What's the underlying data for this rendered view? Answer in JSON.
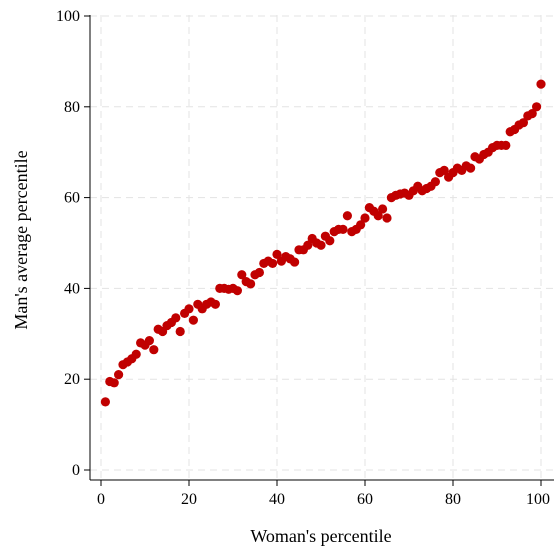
{
  "chart_data": {
    "type": "scatter",
    "title": "",
    "xlabel": "Woman's percentile",
    "ylabel": "Man's average percentile",
    "xlim": [
      0,
      100
    ],
    "ylim": [
      0,
      100
    ],
    "x_ticks": [
      "0",
      "20",
      "40",
      "60",
      "80",
      "100"
    ],
    "y_ticks": [
      "0",
      "20",
      "40",
      "60",
      "80",
      "100"
    ],
    "grid": true,
    "legend": "none",
    "point_color": "#c00000",
    "series": [
      {
        "x": [
          1,
          2,
          3,
          4,
          5,
          6,
          7,
          8,
          9,
          10,
          11,
          12,
          13,
          14,
          15,
          16,
          17,
          18,
          19,
          20,
          21,
          22,
          23,
          24,
          25,
          26,
          27,
          28,
          29,
          30,
          31,
          32,
          33,
          34,
          35,
          36,
          37,
          38,
          39,
          40,
          41,
          42,
          43,
          44,
          45,
          46,
          47,
          48,
          49,
          50,
          51,
          52,
          53,
          54,
          55,
          56,
          57,
          58,
          59,
          60,
          61,
          62,
          63,
          64,
          65,
          66,
          67,
          68,
          69,
          70,
          71,
          72,
          73,
          74,
          75,
          76,
          77,
          78,
          79,
          80,
          81,
          82,
          83,
          84,
          85,
          86,
          87,
          88,
          89,
          90,
          91,
          92,
          93,
          94,
          95,
          96,
          97,
          98,
          99,
          100
        ],
        "y": [
          15,
          19.5,
          19.2,
          21,
          23.2,
          23.8,
          24.5,
          25.5,
          28,
          27.5,
          28.5,
          26.5,
          31,
          30.5,
          31.8,
          32.5,
          33.5,
          30.5,
          34.5,
          35.5,
          33,
          36.5,
          35.5,
          36.5,
          37,
          36.5,
          40,
          40,
          39.8,
          40,
          39.5,
          43,
          41.5,
          41,
          43,
          43.5,
          45.5,
          46,
          45.5,
          47.5,
          46,
          47,
          46.5,
          45.8,
          48.5,
          48.5,
          49.5,
          51,
          50,
          49.5,
          51.5,
          50.5,
          52.5,
          53,
          53,
          56,
          52.5,
          53,
          54,
          55.5,
          57.8,
          57,
          56,
          57.5,
          55.5,
          60,
          60.5,
          60.8,
          61,
          60.5,
          61.5,
          62.5,
          61.5,
          62,
          62.5,
          63.5,
          65.5,
          66,
          64.5,
          65.5,
          66.5,
          66,
          67,
          66.5,
          69,
          68.5,
          69.5,
          70,
          71,
          71.5,
          71.5,
          71.5,
          74.5,
          75,
          76,
          76.5,
          78,
          78.5,
          80,
          85
        ]
      }
    ]
  }
}
